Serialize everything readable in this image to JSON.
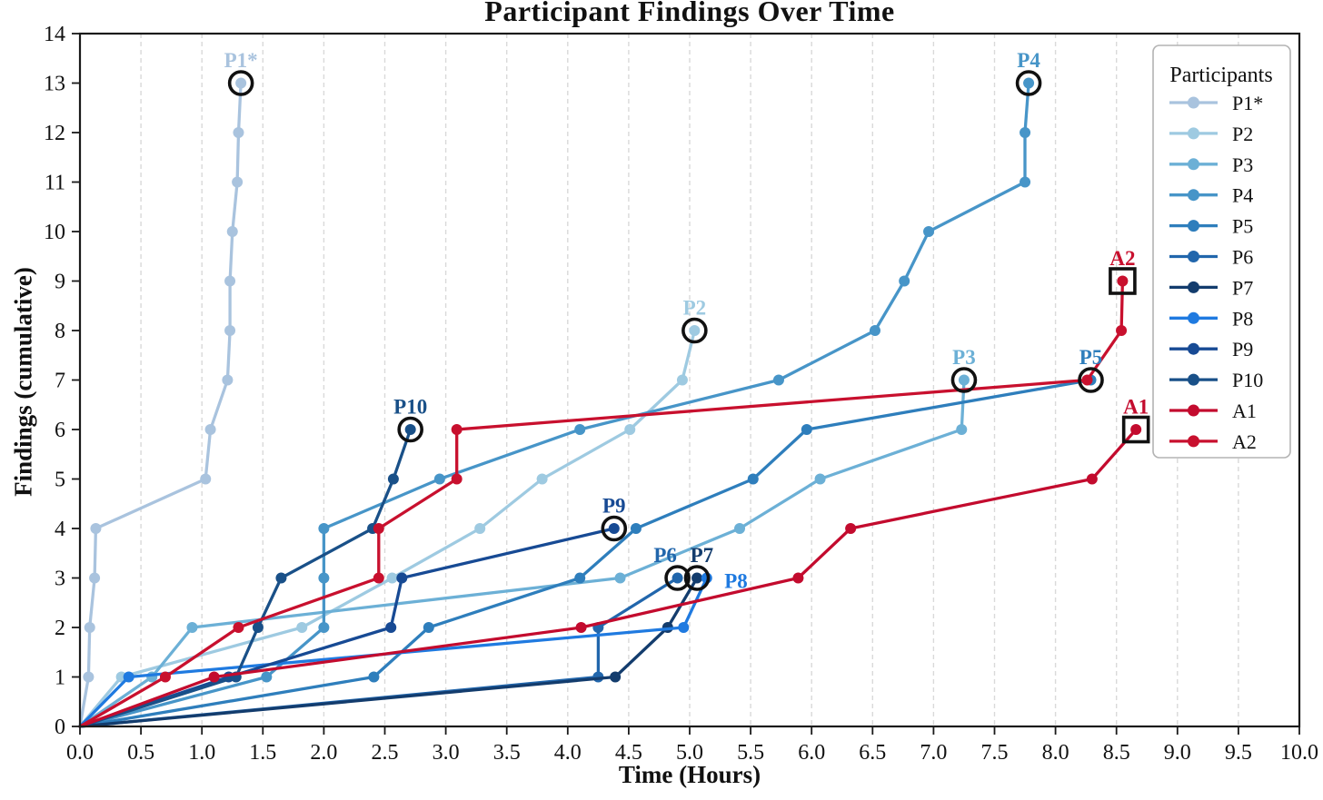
{
  "title": "Participant Findings Over Time",
  "axes": {
    "x_label": "Time (Hours)",
    "y_label": "Findings (cumulative)",
    "x_min": 0,
    "x_max": 10,
    "y_min": 0,
    "y_max": 14,
    "x_ticks": [
      "0.0",
      "0.5",
      "1.0",
      "1.5",
      "2.0",
      "2.5",
      "3.0",
      "3.5",
      "4.0",
      "4.5",
      "5.0",
      "5.5",
      "6.0",
      "6.5",
      "7.0",
      "7.5",
      "8.0",
      "8.5",
      "9.0",
      "9.5",
      "10.0"
    ],
    "y_ticks": [
      "0",
      "1",
      "2",
      "3",
      "4",
      "5",
      "6",
      "7",
      "8",
      "9",
      "10",
      "11",
      "12",
      "13",
      "14"
    ],
    "grid_color": "#d9d9d9",
    "border_color": "#1a1a1a"
  },
  "legend": {
    "title": "Participants",
    "entries": [
      "P1*",
      "P2",
      "P3",
      "P4",
      "P5",
      "P6",
      "P7",
      "P8",
      "P9",
      "P10",
      "A1",
      "A2"
    ]
  },
  "chart_data": {
    "type": "line",
    "xlabel": "Time (Hours)",
    "ylabel": "Findings (cumulative)",
    "xlim": [
      0,
      10
    ],
    "ylim": [
      0,
      14
    ],
    "grid": "vertical-dashed",
    "legend_position": "upper right",
    "series": [
      {
        "name": "P1*",
        "color": "#a9c3de",
        "end_marker": "circle",
        "label": "P1*",
        "label_x": 1.32,
        "label_y": 13.45,
        "label_anchor": "middle",
        "points": [
          [
            0,
            0
          ],
          [
            0.07,
            1
          ],
          [
            0.08,
            2
          ],
          [
            0.12,
            3
          ],
          [
            0.13,
            4
          ],
          [
            1.03,
            5
          ],
          [
            1.07,
            6
          ],
          [
            1.21,
            7
          ],
          [
            1.23,
            8
          ],
          [
            1.23,
            9
          ],
          [
            1.25,
            10
          ],
          [
            1.29,
            11
          ],
          [
            1.3,
            12
          ],
          [
            1.32,
            13
          ]
        ]
      },
      {
        "name": "P2",
        "color": "#9ecae1",
        "end_marker": "circle",
        "label": "P2",
        "label_x": 5.04,
        "label_y": 8.45,
        "label_anchor": "middle",
        "points": [
          [
            0,
            0
          ],
          [
            0.34,
            1
          ],
          [
            1.82,
            2
          ],
          [
            2.56,
            3
          ],
          [
            3.28,
            4
          ],
          [
            3.79,
            5
          ],
          [
            4.51,
            6
          ],
          [
            4.94,
            7
          ],
          [
            5.04,
            8
          ]
        ]
      },
      {
        "name": "P3",
        "color": "#6cb0d6",
        "end_marker": "circle",
        "label": "P3",
        "label_x": 7.25,
        "label_y": 7.45,
        "label_anchor": "middle",
        "points": [
          [
            0,
            0
          ],
          [
            0.59,
            1
          ],
          [
            0.92,
            2
          ],
          [
            4.43,
            3
          ],
          [
            5.41,
            4
          ],
          [
            6.07,
            5
          ],
          [
            7.23,
            6
          ],
          [
            7.25,
            7
          ]
        ]
      },
      {
        "name": "P4",
        "color": "#4795c8",
        "end_marker": "circle",
        "label": "P4",
        "label_x": 7.78,
        "label_y": 13.45,
        "label_anchor": "middle",
        "points": [
          [
            0,
            0
          ],
          [
            1.53,
            1
          ],
          [
            2.0,
            2
          ],
          [
            2.0,
            3
          ],
          [
            2.0,
            4
          ],
          [
            2.95,
            5
          ],
          [
            4.1,
            6
          ],
          [
            5.73,
            7
          ],
          [
            6.52,
            8
          ],
          [
            6.76,
            9
          ],
          [
            6.96,
            10
          ],
          [
            7.75,
            11
          ],
          [
            7.75,
            12
          ],
          [
            7.78,
            13
          ]
        ]
      },
      {
        "name": "P5",
        "color": "#2e7ebc",
        "end_marker": "circle",
        "label": "P5",
        "label_x": 8.29,
        "label_y": 7.45,
        "label_anchor": "middle",
        "points": [
          [
            0,
            0
          ],
          [
            2.41,
            1
          ],
          [
            2.86,
            2
          ],
          [
            4.1,
            3
          ],
          [
            4.56,
            4
          ],
          [
            5.52,
            5
          ],
          [
            5.96,
            6
          ],
          [
            8.29,
            7
          ]
        ]
      },
      {
        "name": "P6",
        "color": "#2166ac",
        "end_marker": "circle",
        "label": "P6",
        "label_x": 4.8,
        "label_y": 3.45,
        "label_anchor": "middle",
        "points": [
          [
            0,
            0
          ],
          [
            4.25,
            1
          ],
          [
            4.25,
            2
          ],
          [
            4.9,
            3
          ]
        ]
      },
      {
        "name": "P7",
        "color": "#133c6d",
        "end_marker": "circle",
        "label": "P7",
        "label_x": 5.1,
        "label_y": 3.45,
        "label_anchor": "middle",
        "points": [
          [
            0,
            0
          ],
          [
            4.39,
            1
          ],
          [
            4.82,
            2
          ],
          [
            5.06,
            3
          ]
        ]
      },
      {
        "name": "P8",
        "color": "#1f7ae0",
        "end_marker": "none",
        "label": "P8",
        "label_x": 5.38,
        "label_y": 2.93,
        "label_anchor": "middle",
        "points": [
          [
            0,
            0
          ],
          [
            0.4,
            1
          ],
          [
            4.95,
            2
          ],
          [
            5.14,
            3
          ]
        ]
      },
      {
        "name": "P9",
        "color": "#174a94",
        "end_marker": "circle",
        "label": "P9",
        "label_x": 4.38,
        "label_y": 4.45,
        "label_anchor": "middle",
        "points": [
          [
            0,
            0
          ],
          [
            1.22,
            1
          ],
          [
            2.55,
            2
          ],
          [
            2.64,
            3
          ],
          [
            4.38,
            4
          ]
        ]
      },
      {
        "name": "P10",
        "color": "#195088",
        "end_marker": "circle",
        "label": "P10",
        "label_x": 2.71,
        "label_y": 6.45,
        "label_anchor": "middle",
        "points": [
          [
            0,
            0
          ],
          [
            1.28,
            1
          ],
          [
            1.46,
            2
          ],
          [
            1.65,
            3
          ],
          [
            2.4,
            4
          ],
          [
            2.57,
            5
          ],
          [
            2.71,
            6
          ]
        ]
      },
      {
        "name": "A1",
        "color": "#c30b2e",
        "end_marker": "square",
        "label": "A1",
        "label_x": 8.66,
        "label_y": 6.45,
        "label_anchor": "middle",
        "points": [
          [
            0,
            0
          ],
          [
            1.1,
            1
          ],
          [
            4.11,
            2
          ],
          [
            5.89,
            3
          ],
          [
            6.32,
            4
          ],
          [
            8.3,
            5
          ],
          [
            8.66,
            6
          ]
        ]
      },
      {
        "name": "A2",
        "color": "#c8102e",
        "end_marker": "square",
        "label": "A2",
        "label_x": 8.55,
        "label_y": 9.45,
        "label_anchor": "middle",
        "points": [
          [
            0,
            0
          ],
          [
            0.7,
            1
          ],
          [
            1.3,
            2
          ],
          [
            2.45,
            3
          ],
          [
            2.45,
            4
          ],
          [
            3.09,
            5
          ],
          [
            3.09,
            6
          ],
          [
            8.26,
            7
          ],
          [
            8.54,
            8
          ],
          [
            8.55,
            9
          ]
        ]
      }
    ],
    "annotation_ring_color": "#111111"
  }
}
